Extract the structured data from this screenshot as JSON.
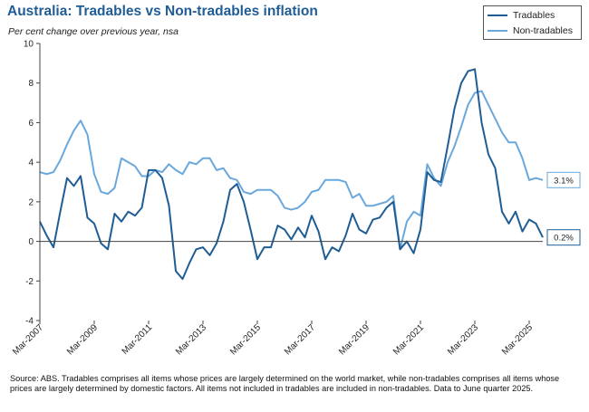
{
  "chart_data": {
    "type": "line",
    "title": "Australia: Tradables vs Non-tradables inflation",
    "subtitle": "Per cent change over previous year, nsa",
    "ylim": [
      -4,
      10
    ],
    "yticks": [
      -4,
      -2,
      0,
      2,
      4,
      6,
      8,
      10
    ],
    "xticks": [
      {
        "label": "Mar-2007",
        "index": 0
      },
      {
        "label": "Mar-2009",
        "index": 8
      },
      {
        "label": "Mar-2011",
        "index": 16
      },
      {
        "label": "Mar-2013",
        "index": 24
      },
      {
        "label": "Mar-2015",
        "index": 32
      },
      {
        "label": "Mar-2017",
        "index": 40
      },
      {
        "label": "Mar-2019",
        "index": 48
      },
      {
        "label": "Mar-2021",
        "index": 56
      },
      {
        "label": "Mar-2023",
        "index": 64
      },
      {
        "label": "Mar-2025",
        "index": 72
      }
    ],
    "period_start": "Mar-2007",
    "period_end": "Jun-2025",
    "series": [
      {
        "name": "Tradables",
        "color": "#1f5d94",
        "values": [
          1.0,
          0.3,
          -0.3,
          1.5,
          3.2,
          2.8,
          3.3,
          1.2,
          0.9,
          -0.1,
          -0.4,
          1.4,
          1.0,
          1.5,
          1.3,
          1.7,
          3.6,
          3.6,
          3.2,
          1.8,
          -1.5,
          -1.9,
          -1.1,
          -0.4,
          -0.3,
          -0.7,
          -0.1,
          1.0,
          2.6,
          2.9,
          2.0,
          0.6,
          -0.9,
          -0.3,
          -0.3,
          0.8,
          0.6,
          0.1,
          0.7,
          0.2,
          1.3,
          0.5,
          -0.9,
          -0.3,
          -0.5,
          0.3,
          1.4,
          0.6,
          0.4,
          1.1,
          1.2,
          1.7,
          2.0,
          -0.4,
          0.0,
          -0.6,
          0.6,
          3.5,
          3.1,
          3.0,
          4.8,
          6.7,
          8.0,
          8.6,
          8.7,
          6.0,
          4.4,
          3.7,
          1.5,
          0.9,
          1.5,
          0.5,
          1.1,
          0.9,
          0.2
        ]
      },
      {
        "name": "Non-tradables",
        "color": "#6aa8dc",
        "values": [
          3.5,
          3.4,
          3.5,
          4.1,
          4.9,
          5.6,
          6.1,
          5.4,
          3.4,
          2.5,
          2.4,
          2.7,
          4.2,
          4.0,
          3.8,
          3.3,
          3.3,
          3.6,
          3.5,
          3.9,
          3.6,
          3.4,
          4.0,
          3.9,
          4.2,
          4.2,
          3.6,
          3.7,
          3.2,
          3.1,
          2.5,
          2.4,
          2.6,
          2.6,
          2.6,
          2.3,
          1.7,
          1.6,
          1.7,
          2.0,
          2.5,
          2.6,
          3.1,
          3.1,
          3.1,
          3.0,
          2.2,
          2.4,
          1.8,
          1.8,
          1.9,
          2.0,
          2.3,
          -0.4,
          1.0,
          1.5,
          1.3,
          3.9,
          3.2,
          2.8,
          4.0,
          4.8,
          5.8,
          6.9,
          7.5,
          7.6,
          6.9,
          6.2,
          5.5,
          5.0,
          5.0,
          4.2,
          3.1,
          3.2,
          3.1
        ]
      }
    ],
    "end_labels": [
      {
        "series": "Non-tradables",
        "text": "3.1%"
      },
      {
        "series": "Tradables",
        "text": "0.2%"
      }
    ],
    "legend": {
      "position": "top-right",
      "entries": [
        "Tradables",
        "Non-tradables"
      ]
    },
    "source": "Source: ABS. Tradables comprises all items whose prices are largely determined on the world market, while non-tradables comprises all items whose prices are largely determined by domestic factors. All items not included in tradables are included in non-tradables. Data to June quarter 2025."
  }
}
